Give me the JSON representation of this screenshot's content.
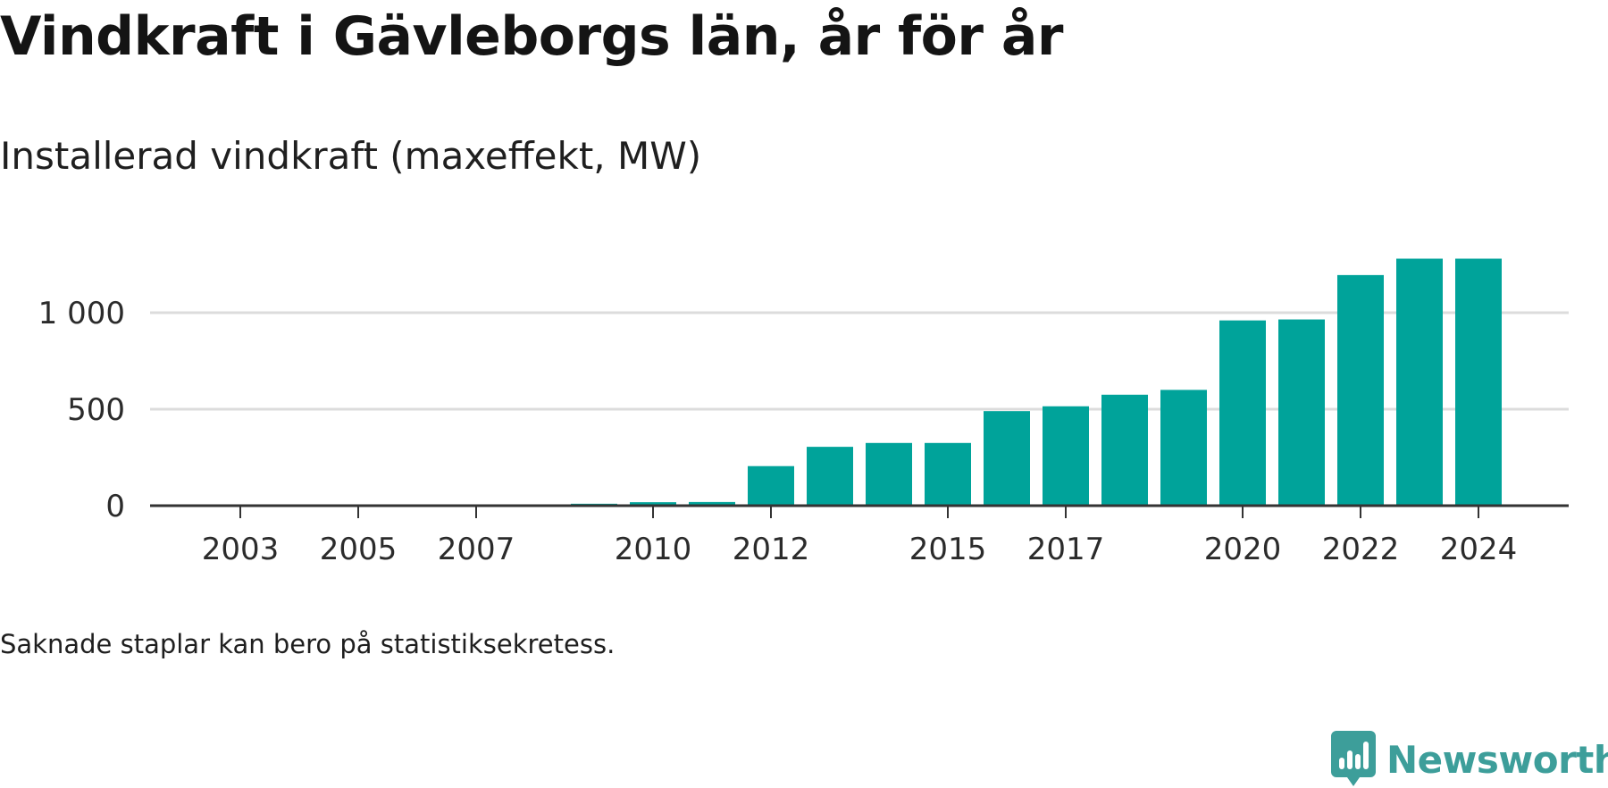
{
  "header": {
    "title": "Vindkraft i Gävleborgs län, år för år",
    "subtitle": "Installerad vindkraft (maxeffekt, MW)"
  },
  "footer": {
    "note": "Saknade staplar kan bero på statistiksekretess.",
    "brand": "Newsworthy"
  },
  "colors": {
    "bar": "#00a39a",
    "grid": "#dcdcdc",
    "axis": "#333333",
    "brand": "#3d9e9a"
  },
  "chart_data": {
    "type": "bar",
    "title": "Vindkraft i Gävleborgs län, år för år",
    "subtitle": "Installerad vindkraft (maxeffekt, MW)",
    "categories": [
      "2002",
      "2003",
      "2004",
      "2005",
      "2006",
      "2007",
      "2008",
      "2009",
      "2010",
      "2011",
      "2012",
      "2013",
      "2014",
      "2015",
      "2016",
      "2017",
      "2018",
      "2019",
      "2020",
      "2021",
      "2022",
      "2023",
      "2024"
    ],
    "values": [
      0.5,
      0.5,
      0.5,
      0.5,
      0.5,
      0.5,
      1,
      10,
      18,
      19,
      205,
      305,
      325,
      325,
      490,
      515,
      575,
      600,
      960,
      965,
      1195,
      1280,
      1280
    ],
    "x_tick_labels": [
      "2003",
      "2005",
      "2007",
      "2010",
      "2012",
      "2015",
      "2017",
      "2020",
      "2022",
      "2024"
    ],
    "y_ticks": [
      0,
      500,
      1000
    ],
    "y_tick_labels": [
      "0",
      "500",
      "1 000"
    ],
    "ylim": [
      0,
      1300
    ],
    "grid": true,
    "legend": "none"
  }
}
